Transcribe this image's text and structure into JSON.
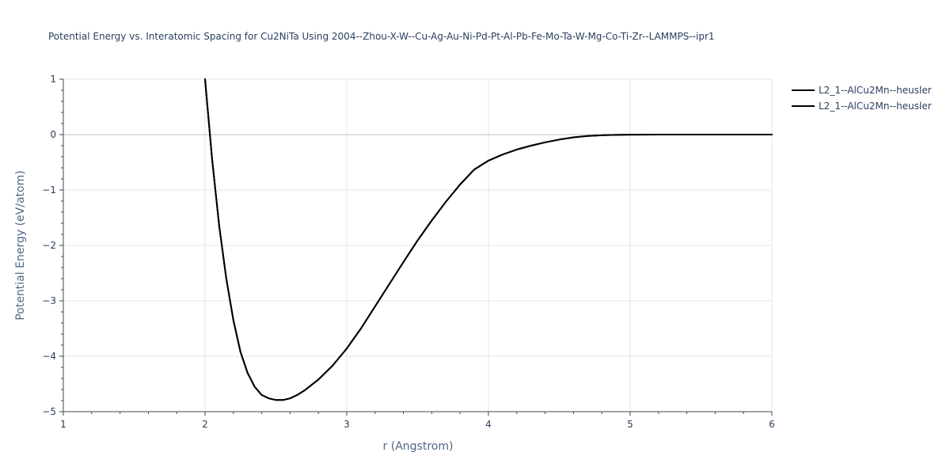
{
  "chart_data": {
    "type": "line",
    "title": "Potential Energy vs. Interatomic Spacing for Cu2NiTa Using 2004--Zhou-X-W--Cu-Ag-Au-Ni-Pd-Pt-Al-Pb-Fe-Mo-Ta-W-Mg-Co-Ti-Zr--LAMMPS--ipr1",
    "xlabel": "r (Angstrom)",
    "ylabel": "Potential Energy (eV/atom)",
    "xlim": [
      1,
      6
    ],
    "ylim": [
      -5,
      1
    ],
    "xticks": [
      1,
      2,
      3,
      4,
      5,
      6
    ],
    "yticks": [
      1,
      0,
      -1,
      -2,
      -3,
      -4,
      -5
    ],
    "xtick_labels": [
      "1",
      "2",
      "3",
      "4",
      "5",
      "6"
    ],
    "ytick_labels": [
      "1",
      "0",
      "−1",
      "−2",
      "−3",
      "−4",
      "−5"
    ],
    "grid": true,
    "legend_position": "top-right",
    "series": [
      {
        "name": "L2_1--AlCu2Mn--heusler",
        "color": "#000000",
        "x": [
          2.0,
          2.05,
          2.1,
          2.15,
          2.2,
          2.25,
          2.3,
          2.35,
          2.4,
          2.45,
          2.5,
          2.55,
          2.6,
          2.65,
          2.7,
          2.8,
          2.9,
          3.0,
          3.1,
          3.2,
          3.3,
          3.4,
          3.5,
          3.6,
          3.7,
          3.8,
          3.9,
          4.0,
          4.1,
          4.2,
          4.3,
          4.4,
          4.5,
          4.6,
          4.7,
          4.8,
          4.9,
          5.0,
          5.2,
          5.5,
          6.0
        ],
        "y": [
          1.0,
          -0.45,
          -1.65,
          -2.6,
          -3.35,
          -3.92,
          -4.3,
          -4.55,
          -4.7,
          -4.76,
          -4.79,
          -4.79,
          -4.76,
          -4.7,
          -4.62,
          -4.42,
          -4.17,
          -3.86,
          -3.5,
          -3.1,
          -2.7,
          -2.3,
          -1.91,
          -1.55,
          -1.21,
          -0.9,
          -0.63,
          -0.47,
          -0.36,
          -0.27,
          -0.2,
          -0.14,
          -0.09,
          -0.05,
          -0.025,
          -0.012,
          -0.005,
          -0.002,
          0.0,
          0.0,
          0.0
        ]
      },
      {
        "name": "L2_1--AlCu2Mn--heusler",
        "color": "#000000",
        "x": [
          2.0,
          2.05,
          2.1,
          2.15,
          2.2,
          2.25,
          2.3,
          2.35,
          2.4,
          2.45,
          2.5,
          2.55,
          2.6,
          2.65,
          2.7,
          2.8,
          2.9,
          3.0,
          3.1,
          3.2,
          3.3,
          3.4,
          3.5,
          3.6,
          3.7,
          3.8,
          3.9,
          4.0,
          4.1,
          4.2,
          4.3,
          4.4,
          4.5,
          4.6,
          4.7,
          4.8,
          4.9,
          5.0,
          5.2,
          5.5,
          6.0
        ],
        "y": [
          1.0,
          -0.45,
          -1.65,
          -2.6,
          -3.35,
          -3.92,
          -4.3,
          -4.55,
          -4.7,
          -4.76,
          -4.79,
          -4.79,
          -4.76,
          -4.7,
          -4.62,
          -4.42,
          -4.17,
          -3.86,
          -3.5,
          -3.1,
          -2.7,
          -2.3,
          -1.91,
          -1.55,
          -1.21,
          -0.9,
          -0.63,
          -0.47,
          -0.36,
          -0.27,
          -0.2,
          -0.14,
          -0.09,
          -0.05,
          -0.025,
          -0.012,
          -0.005,
          -0.002,
          0.0,
          0.0,
          0.0
        ]
      }
    ]
  }
}
